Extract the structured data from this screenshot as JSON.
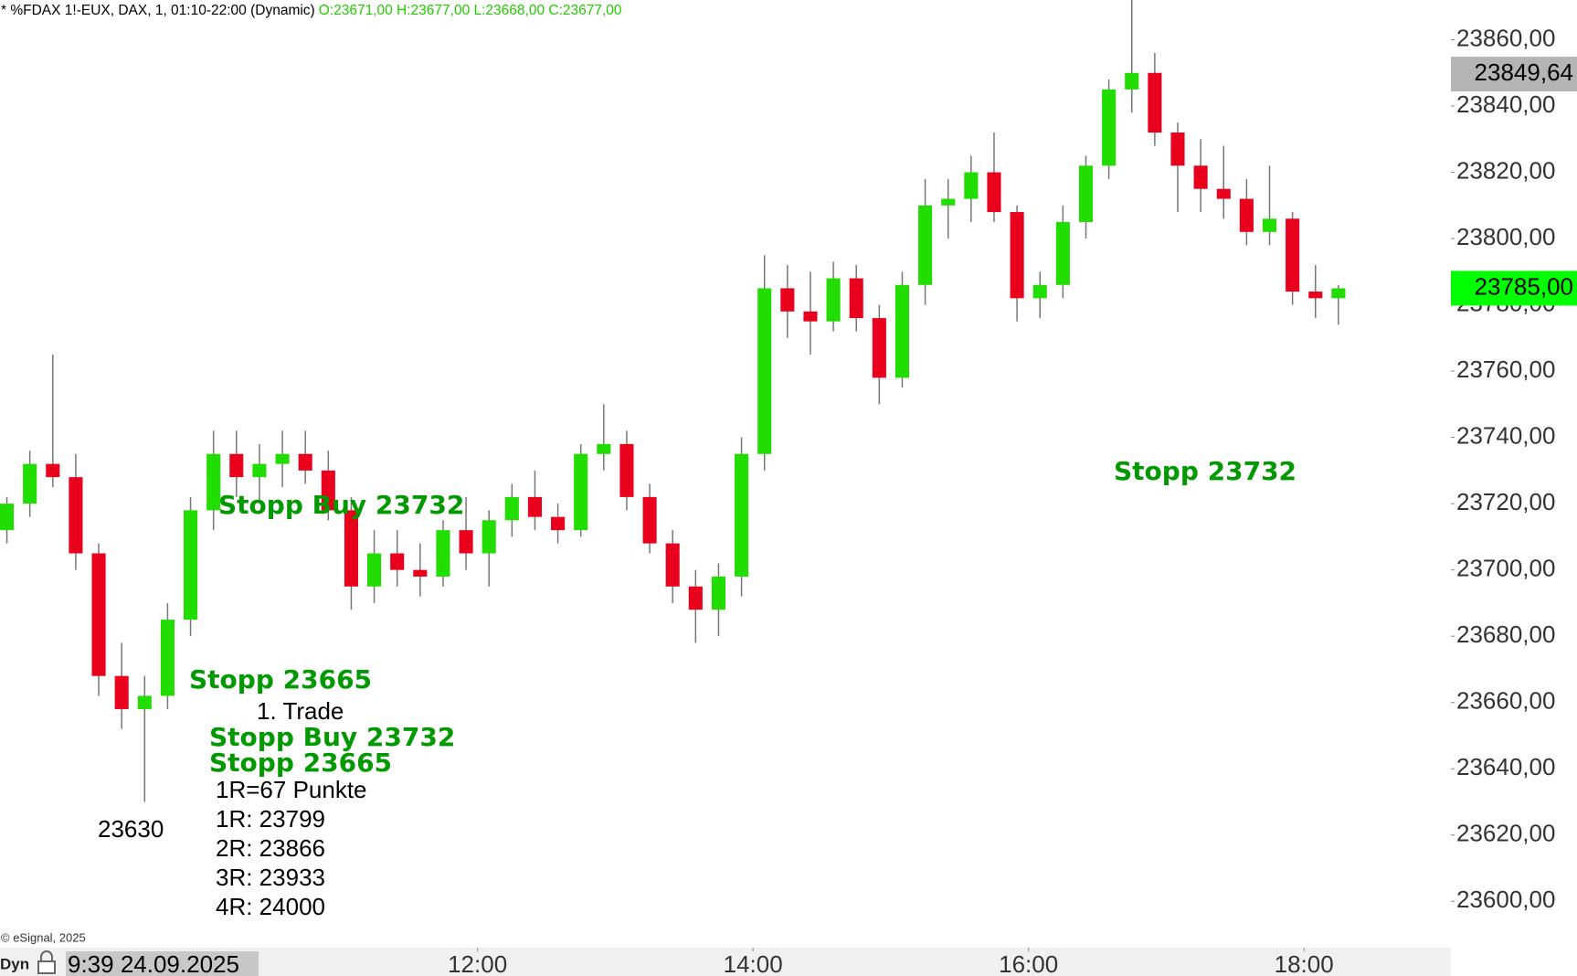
{
  "chart_data": {
    "type": "candlestick",
    "header": "* %FDAX 1!-EUX, DAX, 1, 01:10-22:00 (Dynamic)",
    "header_ohlc": "O:23671,00 H:23677,00 L:23668,00 C:23677,00",
    "x": [
      "08:35",
      "08:45",
      "08:55",
      "09:05",
      "09:15",
      "09:25",
      "09:35",
      "09:45",
      "09:55",
      "10:05",
      "10:15",
      "10:25",
      "10:35",
      "10:45",
      "10:55",
      "11:05",
      "11:15",
      "11:25",
      "11:35",
      "11:45",
      "11:55",
      "12:05",
      "12:15",
      "12:25",
      "12:35",
      "12:45",
      "12:55",
      "13:05",
      "13:15",
      "13:25",
      "13:35",
      "13:45",
      "13:55",
      "14:05",
      "14:15",
      "14:25",
      "14:35",
      "14:45",
      "14:55",
      "15:05",
      "15:15",
      "15:25",
      "15:35",
      "15:45",
      "15:55",
      "16:05",
      "16:15",
      "16:25",
      "16:35",
      "16:45",
      "16:55",
      "17:05",
      "17:15",
      "17:25",
      "17:35",
      "17:45",
      "17:55",
      "18:05",
      "18:15"
    ],
    "open": [
      23712,
      23720,
      23732,
      23728,
      23705,
      23668,
      23658,
      23662,
      23685,
      23718,
      23735,
      23728,
      23732,
      23735,
      23730,
      23718,
      23695,
      23705,
      23700,
      23698,
      23712,
      23705,
      23715,
      23722,
      23716,
      23712,
      23735,
      23738,
      23722,
      23708,
      23695,
      23688,
      23698,
      23735,
      23785,
      23778,
      23775,
      23788,
      23776,
      23758,
      23786,
      23810,
      23812,
      23820,
      23808,
      23782,
      23786,
      23805,
      23822,
      23845,
      23850,
      23832,
      23822,
      23815,
      23812,
      23802,
      23806,
      23784,
      23782
    ],
    "high": [
      23722,
      23736,
      23765,
      23735,
      23708,
      23678,
      23668,
      23690,
      23722,
      23742,
      23742,
      23738,
      23742,
      23742,
      23736,
      23722,
      23712,
      23712,
      23708,
      23715,
      23722,
      23718,
      23726,
      23730,
      23720,
      23738,
      23750,
      23742,
      23726,
      23712,
      23700,
      23702,
      23740,
      23795,
      23792,
      23790,
      23793,
      23792,
      23780,
      23790,
      23818,
      23818,
      23825,
      23832,
      23810,
      23790,
      23810,
      23825,
      23848,
      23872,
      23856,
      23835,
      23830,
      23828,
      23818,
      23822,
      23808,
      23792,
      23786
    ],
    "low": [
      23708,
      23716,
      23725,
      23700,
      23662,
      23652,
      23630,
      23658,
      23680,
      23712,
      23722,
      23720,
      23725,
      23726,
      23715,
      23688,
      23690,
      23695,
      23692,
      23695,
      23700,
      23695,
      23710,
      23712,
      23708,
      23710,
      23730,
      23718,
      23705,
      23690,
      23678,
      23680,
      23692,
      23730,
      23770,
      23765,
      23772,
      23772,
      23750,
      23755,
      23780,
      23800,
      23805,
      23805,
      23775,
      23776,
      23782,
      23800,
      23818,
      23838,
      23828,
      23808,
      23808,
      23806,
      23798,
      23798,
      23780,
      23776,
      23774
    ],
    "close": [
      23720,
      23732,
      23728,
      23705,
      23668,
      23658,
      23662,
      23685,
      23718,
      23735,
      23728,
      23732,
      23735,
      23730,
      23718,
      23695,
      23705,
      23700,
      23698,
      23712,
      23705,
      23715,
      23722,
      23716,
      23712,
      23735,
      23738,
      23722,
      23708,
      23695,
      23688,
      23698,
      23735,
      23785,
      23778,
      23775,
      23788,
      23776,
      23758,
      23786,
      23810,
      23812,
      23820,
      23808,
      23782,
      23786,
      23805,
      23822,
      23845,
      23850,
      23832,
      23822,
      23815,
      23812,
      23802,
      23806,
      23784,
      23782,
      23785
    ],
    "up_color": "#22dd00",
    "down_color": "#e8001c",
    "xlim": [
      "08:32",
      "19:04"
    ],
    "xticks": [
      "12:00",
      "14:00",
      "16:00",
      "18:00"
    ],
    "ylim": [
      23586,
      23872
    ],
    "yticks": [
      {
        "value": 23600,
        "label": "23600,00"
      },
      {
        "value": 23620,
        "label": "23620,00"
      },
      {
        "value": 23640,
        "label": "23640,00"
      },
      {
        "value": 23660,
        "label": "23660,00"
      },
      {
        "value": 23680,
        "label": "23680,00"
      },
      {
        "value": 23700,
        "label": "23700,00"
      },
      {
        "value": 23720,
        "label": "23720,00"
      },
      {
        "value": 23740,
        "label": "23740,00"
      },
      {
        "value": 23760,
        "label": "23760,00"
      },
      {
        "value": 23780,
        "label": "23780,00"
      },
      {
        "value": 23800,
        "label": "23800,00"
      },
      {
        "value": 23820,
        "label": "23820,00"
      },
      {
        "value": 23840,
        "label": "23840,00"
      },
      {
        "value": 23860,
        "label": "23860,00"
      }
    ],
    "price_markers": [
      {
        "value": 23849.64,
        "label": "23849,64",
        "color": "#b4b4b4"
      },
      {
        "value": 23785,
        "label": "23785,00",
        "color": "#00ff00"
      }
    ],
    "cursor_label": "9:39 24.09.2025",
    "mode_label": "Dyn",
    "copyright": "© eSignal, 2025",
    "annotations": [
      {
        "text": "Stopp Buy 23732",
        "color": "#009900",
        "bold": true
      },
      {
        "text": "Stopp 23665",
        "color": "#009900",
        "bold": true
      },
      {
        "text": "1. Trade",
        "color": "#000000",
        "bold": false
      },
      {
        "text": "Stopp Buy 23732",
        "color": "#009900",
        "bold": true
      },
      {
        "text": "Stopp 23665",
        "color": "#009900",
        "bold": true
      },
      {
        "text": "1R=67 Punkte",
        "color": "#000000",
        "bold": false
      },
      {
        "text": "1R: 23799",
        "color": "#000000",
        "bold": false
      },
      {
        "text": "2R: 23866",
        "color": "#000000",
        "bold": false
      },
      {
        "text": "3R: 23933",
        "color": "#000000",
        "bold": false
      },
      {
        "text": "4R: 24000",
        "color": "#000000",
        "bold": false
      },
      {
        "text": "23630",
        "color": "#000000",
        "bold": false
      },
      {
        "text": "Stopp 23732",
        "color": "#009900",
        "bold": true
      }
    ]
  }
}
